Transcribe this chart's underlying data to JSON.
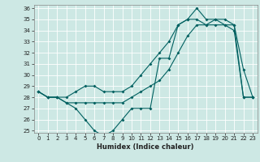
{
  "title": "",
  "xlabel": "Humidex (Indice chaleur)",
  "background_color": "#cde8e4",
  "line_color": "#006060",
  "grid_color": "#b0d8d2",
  "series": {
    "line1": {
      "x": [
        0,
        1,
        2,
        3,
        4,
        5,
        6,
        7,
        8,
        9,
        10,
        11,
        12,
        13,
        14,
        15,
        16,
        17,
        18,
        19,
        20,
        21,
        22,
        23
      ],
      "y": [
        28.5,
        28.0,
        28.0,
        27.5,
        27.0,
        26.0,
        25.0,
        24.5,
        25.0,
        26.0,
        27.0,
        27.0,
        27.0,
        31.5,
        31.5,
        34.5,
        35.0,
        36.0,
        35.0,
        35.0,
        34.5,
        34.5,
        28.0,
        28.0
      ]
    },
    "line2": {
      "x": [
        0,
        1,
        2,
        3,
        4,
        5,
        6,
        7,
        8,
        9,
        10,
        11,
        12,
        13,
        14,
        15,
        16,
        17,
        18,
        19,
        20,
        21,
        22,
        23
      ],
      "y": [
        28.5,
        28.0,
        28.0,
        27.5,
        27.5,
        27.5,
        27.5,
        27.5,
        27.5,
        27.5,
        28.0,
        28.5,
        29.0,
        29.5,
        30.5,
        32.0,
        33.5,
        34.5,
        34.5,
        34.5,
        34.5,
        34.0,
        28.0,
        28.0
      ]
    },
    "line3": {
      "x": [
        0,
        1,
        2,
        3,
        4,
        5,
        6,
        7,
        8,
        9,
        10,
        11,
        12,
        13,
        14,
        15,
        16,
        17,
        18,
        19,
        20,
        21,
        22,
        23
      ],
      "y": [
        28.5,
        28.0,
        28.0,
        28.0,
        28.5,
        29.0,
        29.0,
        28.5,
        28.5,
        28.5,
        29.0,
        30.0,
        31.0,
        32.0,
        33.0,
        34.5,
        35.0,
        35.0,
        34.5,
        35.0,
        35.0,
        34.5,
        30.5,
        28.0
      ]
    }
  },
  "ylim": [
    24.8,
    36.3
  ],
  "xlim": [
    -0.5,
    23.5
  ],
  "yticks": [
    25,
    26,
    27,
    28,
    29,
    30,
    31,
    32,
    33,
    34,
    35,
    36
  ],
  "xticks": [
    0,
    1,
    2,
    3,
    4,
    5,
    6,
    7,
    8,
    9,
    10,
    11,
    12,
    13,
    14,
    15,
    16,
    17,
    18,
    19,
    20,
    21,
    22,
    23
  ],
  "tick_label_fontsize": 5,
  "xlabel_fontsize": 6,
  "marker_size": 2.0,
  "linewidth": 0.8
}
